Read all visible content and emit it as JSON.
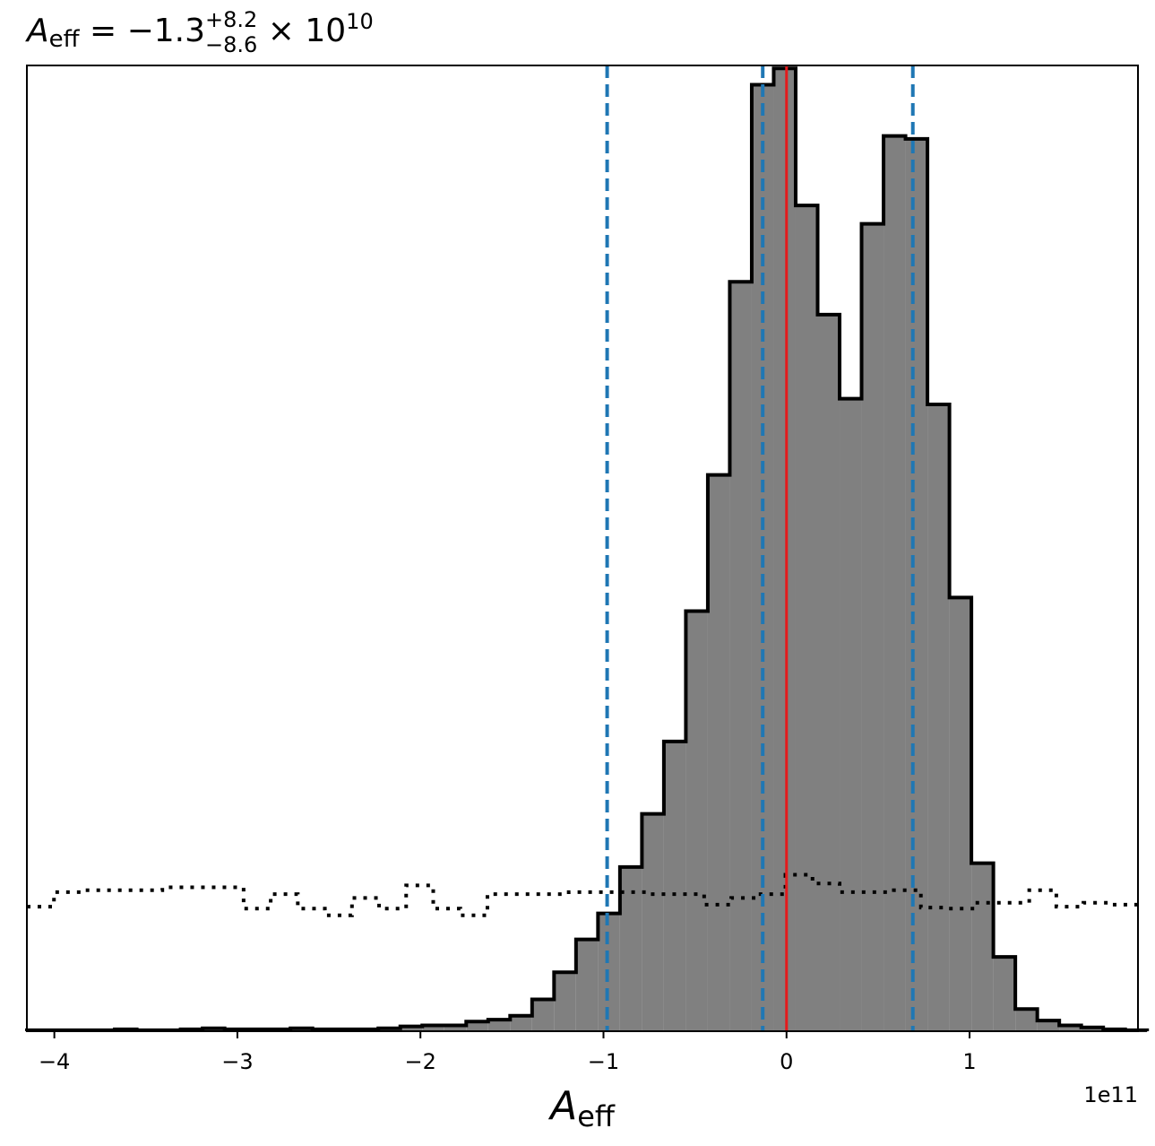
{
  "chart_data": {
    "type": "histogram",
    "title": {
      "symbol": "A",
      "subscript": "eff",
      "equals": " = −1.3",
      "upper": "+8.2",
      "lower": "−8.6",
      "times": " × 10",
      "exponent": "10"
    },
    "xlabel": {
      "symbol": "A",
      "subscript": "eff"
    },
    "x_offset_label": "1e11",
    "x_scale": 100000000000.0,
    "xlim": [
      -4.15,
      1.92
    ],
    "ylim": [
      0,
      1.0
    ],
    "x_ticks": [
      -4,
      -3,
      -2,
      -1,
      0,
      1
    ],
    "x_tick_labels": [
      "−4",
      "−3",
      "−2",
      "−1",
      "0",
      "1"
    ],
    "bin_start": -4.15,
    "bin_width": 0.12,
    "posterior": {
      "fill_color": "#808080",
      "edge_color": "#000000",
      "values": [
        0.001,
        0.001,
        0.001,
        0.001,
        0.002,
        0.001,
        0.001,
        0.002,
        0.003,
        0.002,
        0.002,
        0.002,
        0.003,
        0.002,
        0.002,
        0.002,
        0.003,
        0.005,
        0.006,
        0.006,
        0.01,
        0.012,
        0.016,
        0.033,
        0.061,
        0.095,
        0.122,
        0.17,
        0.225,
        0.3,
        0.435,
        0.576,
        0.776,
        0.98,
        0.997,
        0.855,
        0.742,
        0.655,
        0.836,
        0.927,
        0.924,
        0.649,
        0.449,
        0.174,
        0.077,
        0.023,
        0.011,
        0.006,
        0.004,
        0.002,
        0.001
      ]
    },
    "prior": {
      "line_style": "dotted",
      "edge_color": "#000000",
      "values": [
        0.129,
        0.144,
        0.146,
        0.146,
        0.146,
        0.149,
        0.149,
        0.149,
        0.127,
        0.142,
        0.127,
        0.12,
        0.138,
        0.127,
        0.151,
        0.127,
        0.12,
        0.142,
        0.142,
        0.142,
        0.144,
        0.144,
        0.144,
        0.142,
        0.142,
        0.131,
        0.138,
        0.142,
        0.162,
        0.153,
        0.144,
        0.144,
        0.146,
        0.128,
        0.127,
        0.133,
        0.133,
        0.146,
        0.129,
        0.133,
        0.131
      ]
    },
    "prior_bin_width": 0.148,
    "vlines": [
      {
        "x": -0.98,
        "style": "dashed",
        "color": "#1f77b4"
      },
      {
        "x": -0.13,
        "style": "dashed",
        "color": "#1f77b4"
      },
      {
        "x": 0.69,
        "style": "dashed",
        "color": "#1f77b4"
      },
      {
        "x": 0.0,
        "style": "solid",
        "color": "#e41a1c"
      }
    ]
  }
}
